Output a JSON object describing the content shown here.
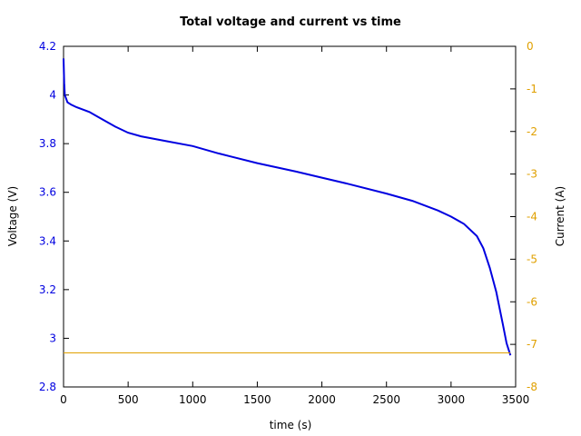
{
  "chart_data": {
    "type": "line",
    "title": "Total voltage and current vs time",
    "xlabel": "time (s)",
    "ylabel": "Voltage (V)",
    "y2label": "Current (A)",
    "xlim": [
      0,
      3500
    ],
    "ylim": [
      2.8,
      4.2
    ],
    "y2lim": [
      -8,
      0
    ],
    "x_ticks": [
      0,
      500,
      1000,
      1500,
      2000,
      2500,
      3000,
      3500
    ],
    "y_ticks": [
      "2.8",
      "3",
      "3.2",
      "3.4",
      "3.6",
      "3.8",
      "4",
      "4.2"
    ],
    "y2_ticks": [
      "-8",
      "-7",
      "-6",
      "-5",
      "-4",
      "-3",
      "-2",
      "-1",
      "0"
    ],
    "grid": false,
    "series": [
      {
        "name": "Voltage",
        "axis": "left",
        "color": "#0000e0",
        "x": [
          0,
          5,
          10,
          30,
          60,
          100,
          200,
          300,
          400,
          500,
          600,
          800,
          1000,
          1200,
          1500,
          1800,
          2000,
          2200,
          2500,
          2700,
          2900,
          3000,
          3100,
          3200,
          3250,
          3300,
          3350,
          3400,
          3430,
          3460
        ],
        "values": [
          4.15,
          4.05,
          4.0,
          3.97,
          3.96,
          3.95,
          3.93,
          3.9,
          3.87,
          3.845,
          3.83,
          3.81,
          3.79,
          3.76,
          3.72,
          3.685,
          3.66,
          3.635,
          3.595,
          3.565,
          3.525,
          3.5,
          3.47,
          3.42,
          3.37,
          3.29,
          3.19,
          3.06,
          2.98,
          2.93
        ]
      },
      {
        "name": "Current",
        "axis": "right",
        "color": "#e0a000",
        "x": [
          0,
          3460
        ],
        "values": [
          -7.2,
          -7.2
        ]
      }
    ]
  }
}
